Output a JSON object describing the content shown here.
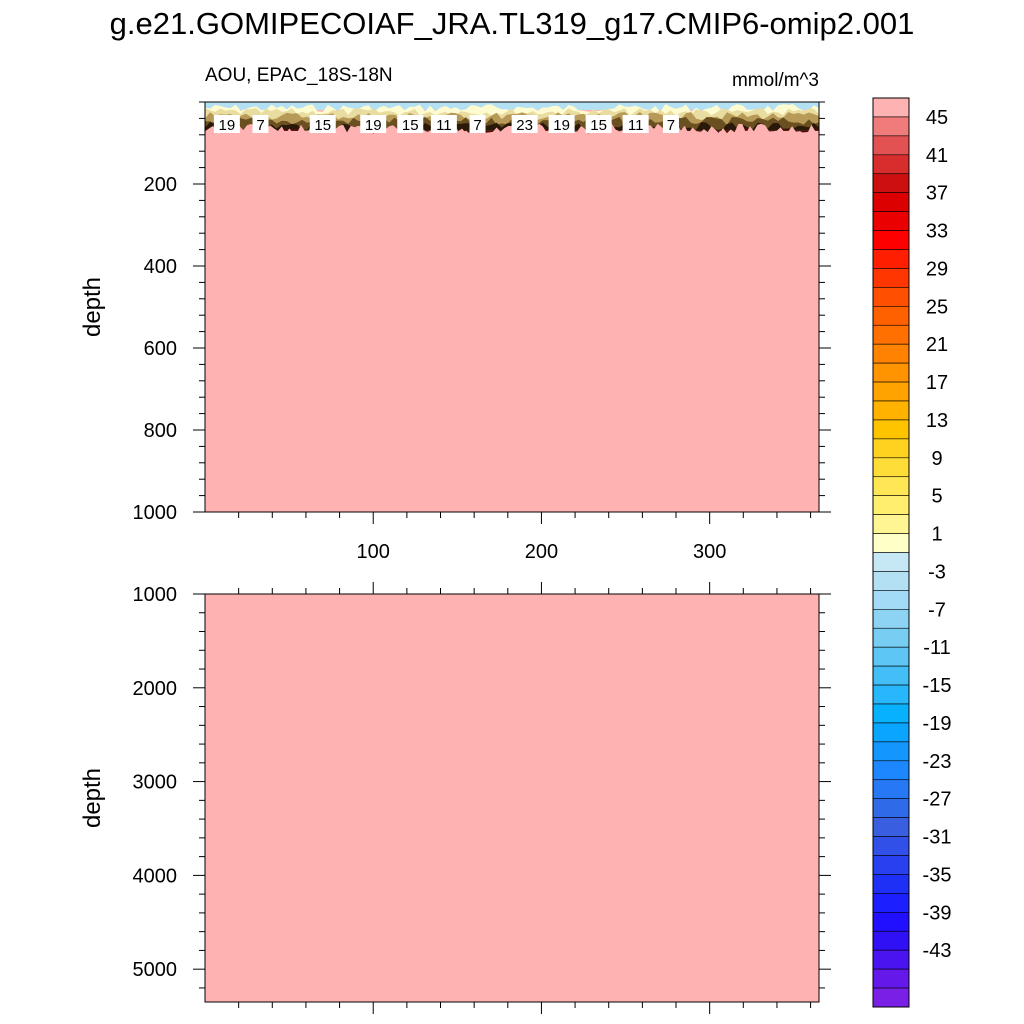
{
  "figure": {
    "title": "g.e21.GOMIPECOIAF_JRA.TL319_g17.CMIP6-omip2.001",
    "subtitle_left": "AOU, EPAC_18S-18N",
    "subtitle_right": "mmol/m^3"
  },
  "chart_data": [
    {
      "type": "heatmap",
      "panel": "upper",
      "ylabel": "depth",
      "xlabel": "",
      "xlim": [
        0,
        365
      ],
      "ylim": [
        0,
        1000
      ],
      "y_inverted": true,
      "xticks": [
        100,
        200,
        300
      ],
      "yticks": [
        200,
        400,
        600,
        800,
        1000
      ],
      "fill_value_at_depth": 47,
      "surface_layer_bottom_depth": 70,
      "surface_value_range": [
        -3,
        45
      ],
      "contour_labels": [
        {
          "x": 13,
          "text": "19"
        },
        {
          "x": 33,
          "text": "7"
        },
        {
          "x": 70,
          "text": "15"
        },
        {
          "x": 100,
          "text": "19"
        },
        {
          "x": 122,
          "text": "15"
        },
        {
          "x": 142,
          "text": "11"
        },
        {
          "x": 162,
          "text": "7"
        },
        {
          "x": 190,
          "text": "23"
        },
        {
          "x": 212,
          "text": "19"
        },
        {
          "x": 234,
          "text": "15"
        },
        {
          "x": 256,
          "text": "11"
        },
        {
          "x": 277,
          "text": "7"
        }
      ]
    },
    {
      "type": "heatmap",
      "panel": "lower",
      "ylabel": "depth",
      "xlabel": "",
      "xlim": [
        0,
        365
      ],
      "ylim": [
        1000,
        5350
      ],
      "y_inverted": true,
      "xticks": [
        100,
        200,
        300
      ],
      "yticks": [
        1000,
        2000,
        3000,
        4000,
        5000
      ],
      "fill_value_at_depth": 47
    }
  ],
  "colorbar": {
    "labels": [
      "45",
      "41",
      "37",
      "33",
      "29",
      "25",
      "21",
      "17",
      "13",
      "9",
      "5",
      "1",
      "-3",
      "-7",
      "-11",
      "-15",
      "-19",
      "-23",
      "-27",
      "-31",
      "-35",
      "-39",
      "-43"
    ],
    "colors": [
      "#ffb2b2",
      "#ef7b7b",
      "#e35252",
      "#d72d2d",
      "#cc1010",
      "#dc0000",
      "#ea0000",
      "#ff0000",
      "#ff1f00",
      "#ff3600",
      "#ff4f00",
      "#ff6000",
      "#ff7000",
      "#ff8200",
      "#ff9300",
      "#ffa300",
      "#ffb300",
      "#ffc400",
      "#ffd21f",
      "#ffdd38",
      "#ffe655",
      "#ffef6c",
      "#fff592",
      "#ffffc8",
      "#c6e8f4",
      "#b4e0f3",
      "#a3daf6",
      "#8dd3f3",
      "#78cdf3",
      "#5ec6f5",
      "#43bef6",
      "#28b7fb",
      "#08b1fd",
      "#0aa5ff",
      "#1496ff",
      "#1d87ff",
      "#2678f5",
      "#2f6ae9",
      "#3a5ee0",
      "#3050e8",
      "#2840f0",
      "#1f30f6",
      "#1c20ff",
      "#2010ff",
      "#3010f5",
      "#4a14f0",
      "#6418ea",
      "#7a1fe6"
    ]
  }
}
